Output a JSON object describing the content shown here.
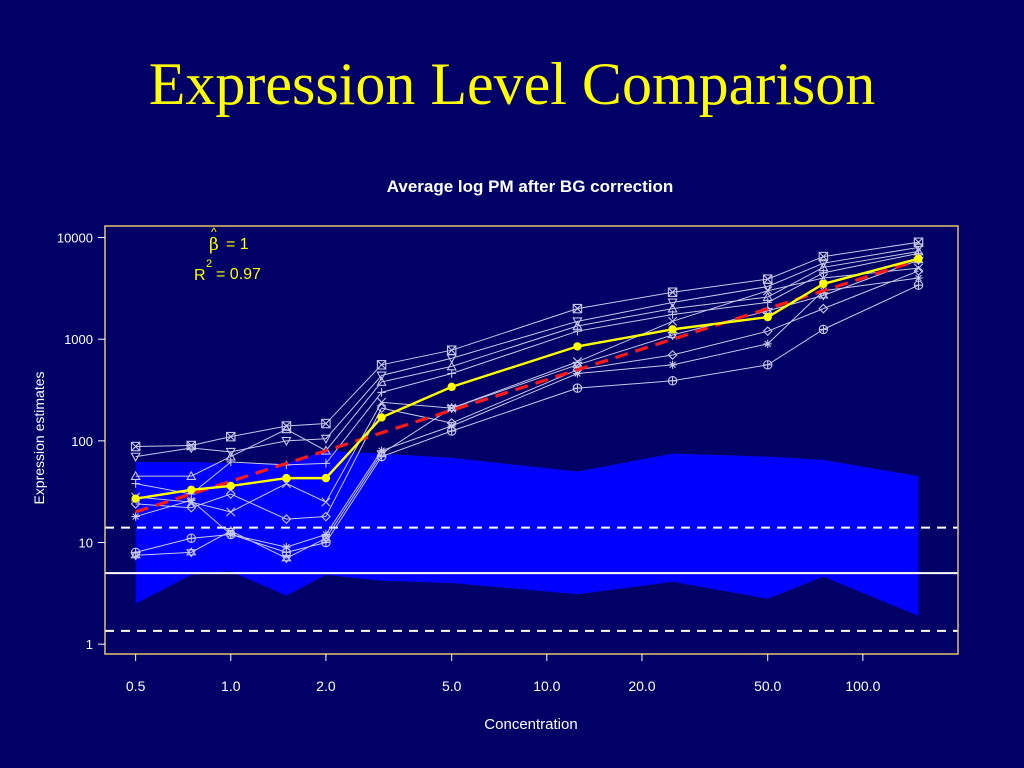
{
  "slide": {
    "title": "Expression Level Comparison"
  },
  "colors": {
    "background": "#000066",
    "title": "#ffff00",
    "plot_frame": "#e3c36b",
    "band": "#0000ff",
    "probe_lines": "#c8c8e8",
    "average": "#ffff00",
    "fit": "#ff1a1a",
    "reference_lines": "#ffffff",
    "text": "#ffffff"
  },
  "chart_data": {
    "type": "line",
    "title": "Average log PM after BG correction",
    "xlabel": "Concentration",
    "ylabel": "Expression estimates",
    "x_scale": "log",
    "y_scale": "log",
    "xlim": [
      0.4,
      200
    ],
    "ylim": [
      0.8,
      13000
    ],
    "x_ticks": [
      0.5,
      1.0,
      2.0,
      5.0,
      10.0,
      20.0,
      50.0,
      100.0
    ],
    "x_tick_labels": [
      "0.5",
      "1.0",
      "2.0",
      "5.0",
      "10.0",
      "20.0",
      "50.0",
      "100.0"
    ],
    "y_ticks": [
      1,
      10,
      100,
      1000,
      10000
    ],
    "y_tick_labels": [
      "1",
      "10",
      "100",
      "1000",
      "10000"
    ],
    "annotation": {
      "beta_hat_label": "β",
      "beta_hat_hat": "^",
      "beta_hat_value": "= 1",
      "r2_label": "R",
      "r2_exponent": "2",
      "r2_value": "= 0.97"
    },
    "x": [
      0.5,
      0.75,
      1.0,
      1.5,
      2.0,
      3.0,
      5.0,
      12.5,
      25.0,
      50.0,
      75.0,
      150.0
    ],
    "band": {
      "name": "noise band",
      "upper": [
        62,
        62,
        60,
        60,
        80,
        75,
        68,
        50,
        75,
        70,
        65,
        45
      ],
      "lower": [
        2.5,
        4.8,
        5.2,
        3.0,
        4.8,
        4.2,
        4.0,
        3.1,
        4.1,
        2.8,
        4.6,
        1.9
      ]
    },
    "reference_lines": {
      "solid": 5,
      "dashed": [
        14,
        1.35
      ]
    },
    "average": [
      27,
      33,
      36,
      43,
      43,
      170,
      340,
      850,
      1250,
      1650,
      3500,
      6200
    ],
    "fit": [
      20,
      30,
      40,
      60,
      80,
      120,
      200,
      500,
      1000,
      2000,
      3000,
      6000
    ],
    "probes": [
      {
        "values": [
          88,
          90,
          110,
          140,
          148,
          560,
          780,
          2000,
          2900,
          3900,
          6500,
          9000
        ],
        "marker": "box-x"
      },
      {
        "values": [
          70,
          85,
          78,
          100,
          105,
          440,
          650,
          1500,
          2300,
          3300,
          5600,
          8000
        ],
        "marker": "triangle-down"
      },
      {
        "values": [
          45,
          45,
          70,
          130,
          80,
          380,
          540,
          1350,
          2000,
          2600,
          5100,
          7300
        ],
        "marker": "triangle"
      },
      {
        "values": [
          38,
          30,
          62,
          58,
          60,
          300,
          460,
          1200,
          1750,
          2300,
          4500,
          7000
        ],
        "marker": "plus"
      },
      {
        "values": [
          28,
          25,
          20,
          38,
          25,
          240,
          210,
          600,
          1500,
          3000,
          4000,
          5000
        ],
        "marker": "x"
      },
      {
        "values": [
          24,
          22,
          30,
          17,
          18,
          210,
          150,
          500,
          700,
          1200,
          2000,
          4700
        ],
        "marker": "diamond"
      },
      {
        "values": [
          18,
          26,
          12,
          9,
          12,
          80,
          140,
          460,
          560,
          900,
          3000,
          4000
        ],
        "marker": "asterisk"
      },
      {
        "values": [
          8,
          11,
          12,
          8,
          10,
          70,
          125,
          330,
          390,
          560,
          1250,
          3400
        ],
        "marker": "circle-plus"
      },
      {
        "values": [
          7.5,
          8,
          13,
          7,
          11,
          75,
          210,
          560,
          1100,
          1900,
          2700,
          6000
        ],
        "marker": "star"
      }
    ]
  }
}
